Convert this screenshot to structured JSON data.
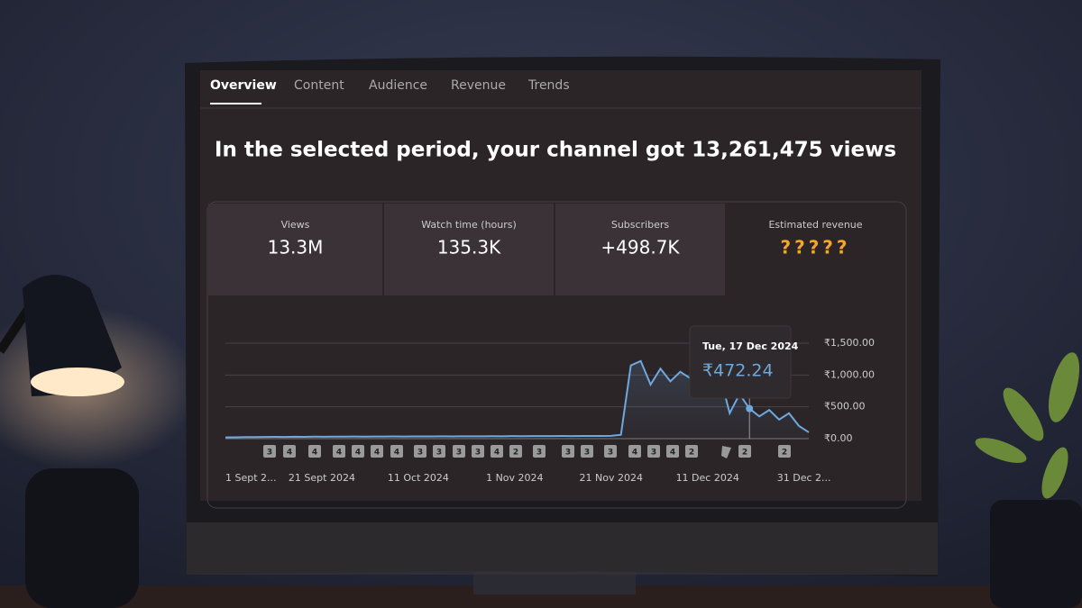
{
  "tabs": [
    "Overview",
    "Content",
    "Audience",
    "Revenue",
    "Trends"
  ],
  "headline": "In the selected period, your channel got 13,261,475 views",
  "cards": [
    {
      "label": "Views",
      "value": "13.3M"
    },
    {
      "label": "Watch time (hours)",
      "value": "135.3K"
    },
    {
      "label": "Subscribers",
      "value": "+498.7K"
    },
    {
      "label": "Estimated revenue",
      "value": "?????"
    }
  ],
  "chart": {
    "type": "line",
    "color": "#6fa8dc",
    "xticks": [
      "1 Sept 2...",
      "21 Sept 2024",
      "11 Oct 2024",
      "1 Nov 2024",
      "21 Nov 2024",
      "11 Dec 2024",
      "31 Dec 2..."
    ],
    "ylim": [
      0,
      1500
    ],
    "yticks": [
      {
        "value": 0,
        "label": "₹0.00"
      },
      {
        "value": 500,
        "label": "₹500.00"
      },
      {
        "value": 1000,
        "label": "₹1,000.00"
      },
      {
        "value": 1500,
        "label": "₹1,500.00"
      }
    ],
    "values": [
      20,
      22,
      25,
      24,
      26,
      28,
      27,
      30,
      29,
      31,
      30,
      32,
      31,
      33,
      32,
      34,
      33,
      35,
      34,
      36,
      35,
      36,
      37,
      36,
      38,
      37,
      38,
      39,
      38,
      40,
      39,
      40,
      41,
      40,
      42,
      41,
      42,
      43,
      42,
      44,
      60,
      1150,
      1220,
      850,
      1100,
      900,
      1050,
      950,
      1100,
      800,
      1000,
      400,
      700,
      472.24,
      350,
      450,
      300,
      400,
      200,
      100
    ],
    "tooltip": {
      "date": "Tue, 17 Dec 2024",
      "value": "₹472.24"
    },
    "markers": [
      "3",
      "4",
      "4",
      "4",
      "4",
      "4",
      "4",
      "3",
      "3",
      "3",
      "3",
      "4",
      "2",
      "3",
      "3",
      "3",
      "3",
      "4",
      "3",
      "4",
      "2",
      "2",
      "2"
    ]
  }
}
